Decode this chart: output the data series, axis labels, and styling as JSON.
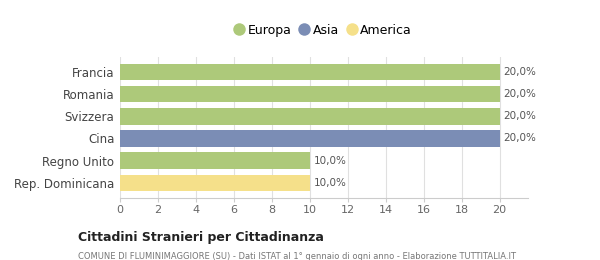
{
  "categories": [
    "Francia",
    "Romania",
    "Svizzera",
    "Cina",
    "Regno Unito",
    "Rep. Dominicana"
  ],
  "values": [
    20,
    20,
    20,
    20,
    10,
    10
  ],
  "colors": [
    "#adc97a",
    "#adc97a",
    "#adc97a",
    "#7b8db5",
    "#adc97a",
    "#f5e08a"
  ],
  "labels": [
    "20,0%",
    "20,0%",
    "20,0%",
    "20,0%",
    "10,0%",
    "10,0%"
  ],
  "label_inside": [
    true,
    true,
    true,
    true,
    false,
    false
  ],
  "xlim": [
    0,
    21.5
  ],
  "xticks": [
    0,
    2,
    4,
    6,
    8,
    10,
    12,
    14,
    16,
    18,
    20
  ],
  "legend_items": [
    {
      "label": "Europa",
      "color": "#adc97a"
    },
    {
      "label": "Asia",
      "color": "#7b8db5"
    },
    {
      "label": "America",
      "color": "#f5e08a"
    }
  ],
  "title": "Cittadini Stranieri per Cittadinanza",
  "subtitle": "COMUNE DI FLUMINIMAGGIORE (SU) - Dati ISTAT al 1° gennaio di ogni anno - Elaborazione TUTTITALIA.IT",
  "bg_color": "#ffffff",
  "plot_bg_color": "#ffffff",
  "grid_color": "#e0e0e0",
  "bar_height": 0.75
}
